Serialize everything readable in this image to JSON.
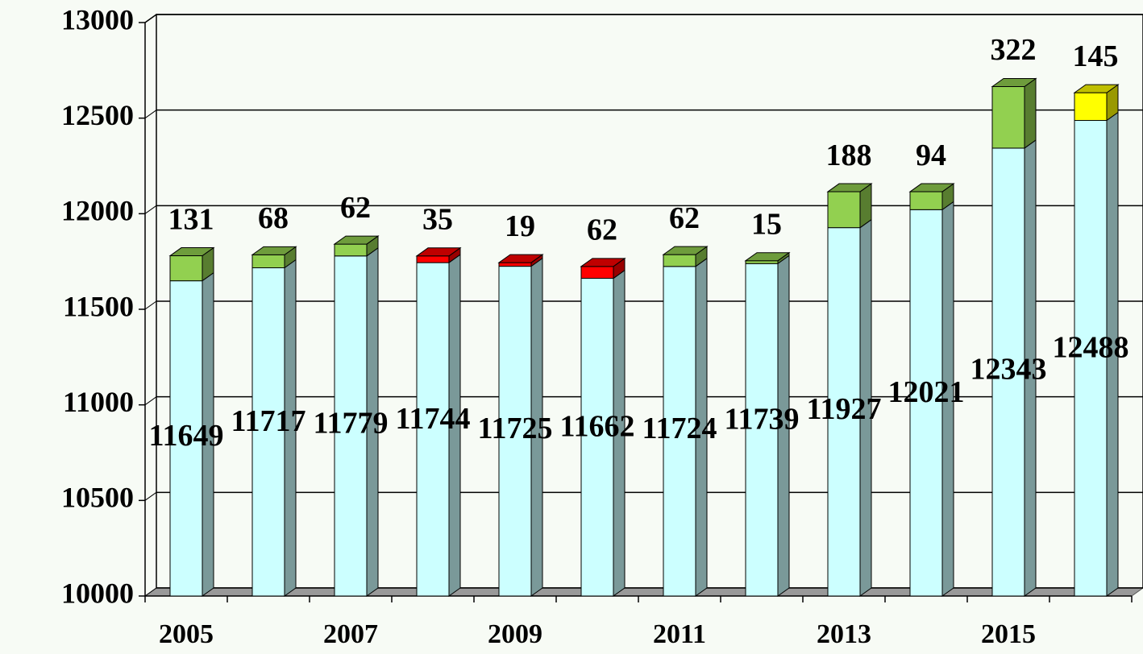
{
  "chart_data": {
    "type": "bar3d_stacked",
    "categories": [
      "2005",
      null,
      "2007",
      null,
      "2009",
      null,
      "2011",
      null,
      "2013",
      null,
      "2015",
      null
    ],
    "series": [
      {
        "color": "#ccffff",
        "values": [
          11649,
          11717,
          11779,
          11744,
          11725,
          11662,
          11724,
          11739,
          11927,
          12021,
          12343,
          12488
        ]
      },
      {
        "colors": [
          "#92d050",
          "#92d050",
          "#92d050",
          "#ff0000",
          "#ff0000",
          "#ff0000",
          "#92d050",
          "#92d050",
          "#92d050",
          "#92d050",
          "#92d050",
          "#ffff00"
        ],
        "values": [
          131,
          68,
          62,
          35,
          19,
          62,
          62,
          15,
          188,
          94,
          322,
          145
        ]
      }
    ],
    "ylim": [
      10000,
      13000
    ],
    "yticks": [
      10000,
      10500,
      11000,
      11500,
      12000,
      12500,
      13000
    ],
    "grid": true
  }
}
